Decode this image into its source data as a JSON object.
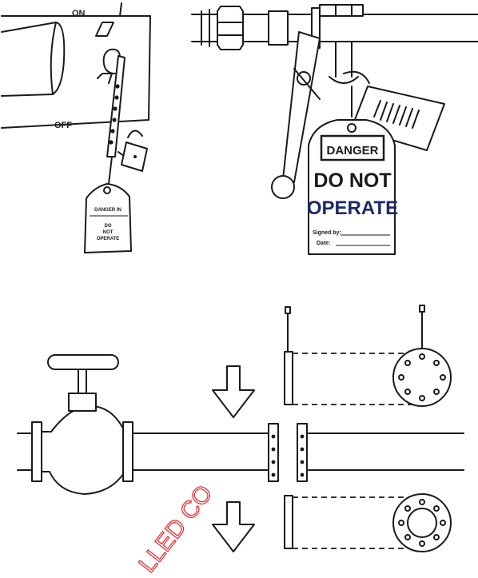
{
  "switch_labels": {
    "on": "ON",
    "off": "OFF"
  },
  "small_tag": {
    "line1": "DANGER IN",
    "line2": "DO",
    "line3": "NOT",
    "line4": "OPERATE"
  },
  "danger_tag": {
    "header": "DANGER",
    "line1": "DO NOT",
    "line2": "OPERATE",
    "signed_label": "Signed by:",
    "date_label": "Date:"
  },
  "watermark": {
    "text": "LLED CO"
  },
  "colors": {
    "ink": "#1a1a1a",
    "tag_blue": "#1b2a6b",
    "watermark": "#e8262b",
    "paper": "#ffffff"
  }
}
